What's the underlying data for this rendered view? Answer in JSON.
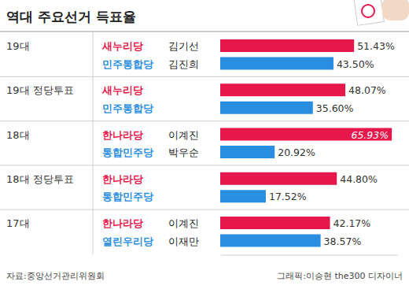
{
  "chart_data": {
    "type": "bar",
    "orientation": "horizontal",
    "title": "역대 주요선거 득표율",
    "group_labels": [
      "19대",
      null,
      "19대 정당투표",
      null,
      "18대",
      null,
      "18대 정당투표",
      null,
      "17대",
      null
    ],
    "categories": [
      "새누리당",
      "민주통합당",
      "새누리당",
      "민주통합당",
      "한나라당",
      "통합민주당",
      "한나라당",
      "통합민주당",
      "한나라당",
      "열린우리당"
    ],
    "candidates": [
      "김기선",
      "김진희",
      null,
      null,
      "이계진",
      "박우순",
      null,
      null,
      "이계진",
      "이재만"
    ],
    "values": [
      51.43,
      43.5,
      48.07,
      35.6,
      65.93,
      20.92,
      44.8,
      17.52,
      42.17,
      38.57
    ],
    "value_labels": [
      "51.43%",
      "43.50%",
      "48.07%",
      "35.60%",
      "65.93%",
      "20.92%",
      "44.80%",
      "17.52%",
      "42.17%",
      "38.57%"
    ],
    "colors": [
      "#e5174b",
      "#2a8ee0",
      "#e5174b",
      "#2a8ee0",
      "#e5174b",
      "#2a8ee0",
      "#e5174b",
      "#2a8ee0",
      "#e5174b",
      "#2a8ee0"
    ],
    "xlim": [
      0,
      68
    ],
    "tick_labels": false,
    "data_labels": true,
    "source": "자료:중앙선거관리위원회",
    "credit": "그래픽:이승현 the300 디자이너"
  }
}
